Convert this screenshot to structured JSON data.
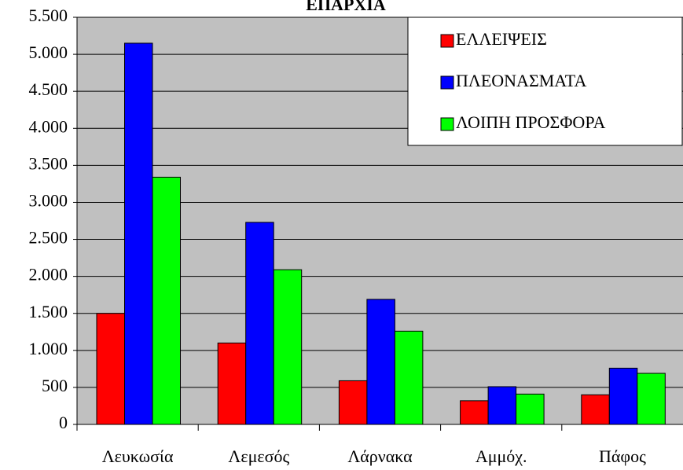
{
  "chart_data": {
    "type": "bar",
    "title": "ΕΠΑΡΧΙΑ",
    "categories": [
      "Λευκωσία",
      "Λεμεσός",
      "Λάρνακα",
      "Αμμόχ.",
      "Πάφος"
    ],
    "series": [
      {
        "name": "ΕΛΛΕΙΨΕΙΣ",
        "color": "#ff0000",
        "values": [
          1500,
          1100,
          590,
          320,
          400
        ]
      },
      {
        "name": "ΠΛΕΟΝΑΣΜΑΤΑ",
        "color": "#0000ff",
        "values": [
          5150,
          2730,
          1690,
          510,
          760
        ]
      },
      {
        "name": "ΛΟΙΠΗ ΠΡΟΣΦΟΡΑ",
        "color": "#00ff00",
        "values": [
          3340,
          2090,
          1260,
          410,
          690
        ]
      }
    ],
    "ylim": [
      0,
      5500
    ],
    "yticks": [
      0,
      500,
      {
        "value": 1000,
        "label": "1.000"
      },
      {
        "value": 1500,
        "label": "1.500"
      },
      {
        "value": 2000,
        "label": "2.000"
      },
      {
        "value": 2500,
        "label": "2.500"
      },
      {
        "value": 3000,
        "label": "3.000"
      },
      {
        "value": 3500,
        "label": "3.500"
      },
      {
        "value": 4000,
        "label": "4.000"
      },
      {
        "value": 4500,
        "label": "4.500"
      },
      {
        "value": 5000,
        "label": "5.000"
      },
      {
        "value": 5500,
        "label": "5.500"
      }
    ],
    "grid": true,
    "legend": "top-right",
    "background": "#c0c0c0"
  }
}
